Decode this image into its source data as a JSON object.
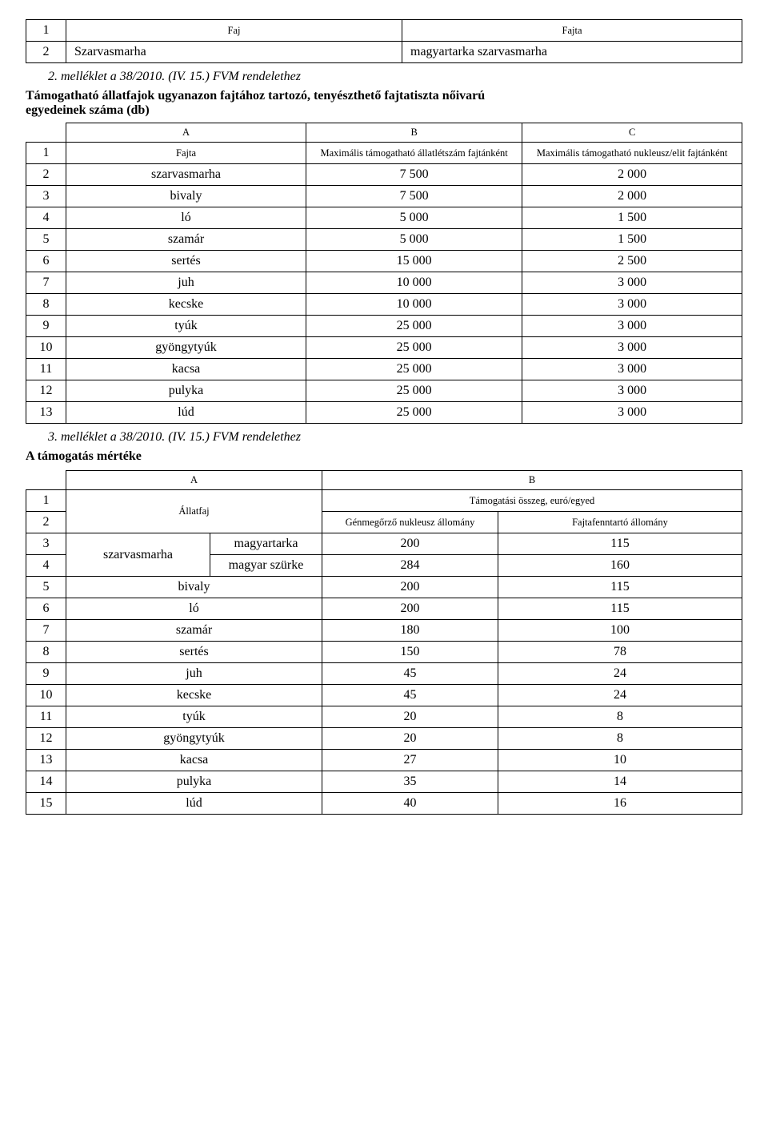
{
  "table1": {
    "rows": [
      {
        "n": "1",
        "c1": "Faj",
        "c2": "Fajta",
        "c1_align": "center",
        "c2_align": "center",
        "c1_size": "small",
        "c2_size": "small"
      },
      {
        "n": "2",
        "c1": "Szarvasmarha",
        "c2": "magyartarka szarvasmarha",
        "c1_align": "left",
        "c2_align": "left",
        "c1_size": "",
        "c2_size": ""
      }
    ]
  },
  "heading2_italic": "2. melléklet a 38/2010. (IV. 15.) FVM rendelethez",
  "heading2_bold": "Támogatható állatfajok ugyanazon fajtához tartozó, tenyészthető fajtatiszta nőivarú egyedeinek száma (db)",
  "table2": {
    "abc": {
      "a": "A",
      "b": "B",
      "c": "C"
    },
    "header": {
      "n": "1",
      "a": "Fajta",
      "b": "Maximális támogatható állatlétszám fajtánként",
      "c": "Maximális támogatható nukleusz/elit fajtánként"
    },
    "rows": [
      {
        "n": "2",
        "a": "szarvasmarha",
        "b": "7 500",
        "c": "2 000"
      },
      {
        "n": "3",
        "a": "bivaly",
        "b": "7 500",
        "c": "2 000"
      },
      {
        "n": "4",
        "a": "ló",
        "b": "5 000",
        "c": "1 500"
      },
      {
        "n": "5",
        "a": "szamár",
        "b": "5 000",
        "c": "1 500"
      },
      {
        "n": "6",
        "a": "sertés",
        "b": "15 000",
        "c": "2 500"
      },
      {
        "n": "7",
        "a": "juh",
        "b": "10 000",
        "c": "3 000"
      },
      {
        "n": "8",
        "a": "kecske",
        "b": "10 000",
        "c": "3 000"
      },
      {
        "n": "9",
        "a": "tyúk",
        "b": "25 000",
        "c": "3 000"
      },
      {
        "n": "10",
        "a": "gyöngytyúk",
        "b": "25 000",
        "c": "3 000"
      },
      {
        "n": "11",
        "a": "kacsa",
        "b": "25 000",
        "c": "3 000"
      },
      {
        "n": "12",
        "a": "pulyka",
        "b": "25 000",
        "c": "3 000"
      },
      {
        "n": "13",
        "a": "lúd",
        "b": "25 000",
        "c": "3 000"
      }
    ]
  },
  "heading3_italic": "3. melléklet a 38/2010. (IV. 15.) FVM rendelethez",
  "heading3_bold": "A támogatás mértéke",
  "table3": {
    "ab": {
      "a": "A",
      "b": "B"
    },
    "header": {
      "n1": "1",
      "n2": "2",
      "allatfaj": "Állatfaj",
      "tamogat": "Támogatási összeg, euró/egyed",
      "gen": "Génmegőrző nukleusz állomány",
      "fajta": "Fajtafenntartó állomány"
    },
    "szarvasmarha_block": {
      "label": "szarvasmarha",
      "r1": {
        "n": "3",
        "sub": "magyartarka",
        "b": "200",
        "c": "115"
      },
      "r2": {
        "n": "4",
        "sub": "magyar szürke",
        "b": "284",
        "c": "160"
      }
    },
    "rows": [
      {
        "n": "5",
        "a": "bivaly",
        "b": "200",
        "c": "115"
      },
      {
        "n": "6",
        "a": "ló",
        "b": "200",
        "c": "115"
      },
      {
        "n": "7",
        "a": "szamár",
        "b": "180",
        "c": "100"
      },
      {
        "n": "8",
        "a": "sertés",
        "b": "150",
        "c": "78"
      },
      {
        "n": "9",
        "a": "juh",
        "b": "45",
        "c": "24"
      },
      {
        "n": "10",
        "a": "kecske",
        "b": "45",
        "c": "24"
      },
      {
        "n": "11",
        "a": "tyúk",
        "b": "20",
        "c": "8"
      },
      {
        "n": "12",
        "a": "gyöngytyúk",
        "b": "20",
        "c": "8"
      },
      {
        "n": "13",
        "a": "kacsa",
        "b": "27",
        "c": "10"
      },
      {
        "n": "14",
        "a": "pulyka",
        "b": "35",
        "c": "14"
      },
      {
        "n": "15",
        "a": "lúd",
        "b": "40",
        "c": "16"
      }
    ]
  }
}
